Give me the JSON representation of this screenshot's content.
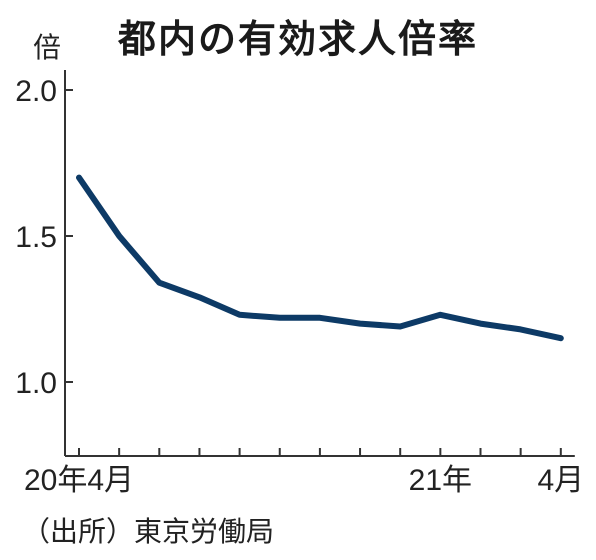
{
  "chart_data": {
    "type": "line",
    "title": "都内の有効求人倍率",
    "unit_label": "倍",
    "source": "（出所）東京労働局",
    "ylim": [
      0.75,
      2.05
    ],
    "yticks": [
      1.0,
      1.5,
      2.0
    ],
    "ytick_labels": [
      "1.0",
      "1.5",
      "2.0"
    ],
    "x": [
      "2020-04",
      "2020-05",
      "2020-06",
      "2020-07",
      "2020-08",
      "2020-09",
      "2020-10",
      "2020-11",
      "2020-12",
      "2021-01",
      "2021-02",
      "2021-03",
      "2021-04"
    ],
    "xtick_labels": [
      {
        "index": 0,
        "label": "20年4月"
      },
      {
        "index": 9,
        "label": "21年"
      },
      {
        "index": 12,
        "label": "4月"
      }
    ],
    "series": [
      {
        "name": "",
        "values": [
          1.7,
          1.5,
          1.34,
          1.29,
          1.23,
          1.22,
          1.22,
          1.2,
          1.19,
          1.23,
          1.2,
          1.18,
          1.15
        ]
      }
    ],
    "line_color": "#0d3a66",
    "axis_color": "#333333",
    "grid": false
  }
}
